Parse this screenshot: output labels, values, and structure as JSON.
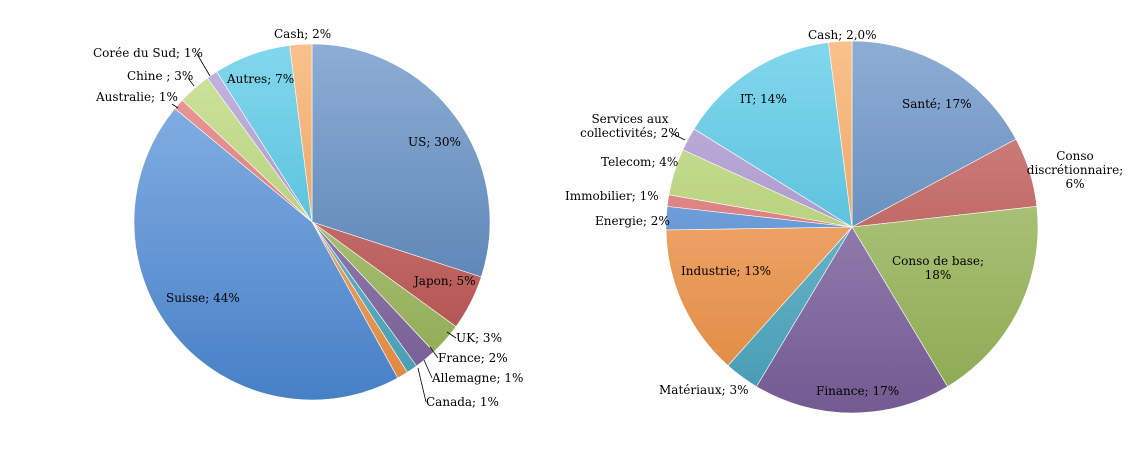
{
  "chart_data": [
    {
      "type": "pie",
      "title": "",
      "start": "top, clockwise",
      "slices": [
        {
          "label": "US; 30%",
          "value": 30,
          "color": "#4f81bd"
        },
        {
          "label": "Japon; 5%",
          "value": 5,
          "color": "#c0504d"
        },
        {
          "label": "UK; 3%",
          "value": 3,
          "color": "#9bbb59"
        },
        {
          "label": "France;  2%",
          "value": 2,
          "color": "#8064a2"
        },
        {
          "label": "Allemagne;  1%",
          "value": 1,
          "color": "#4bacc6"
        },
        {
          "label": "Canada;  1%",
          "value": 1,
          "color": "#f79646"
        },
        {
          "label": "Suisse; 44%",
          "value": 44,
          "color": "#4f8edc"
        },
        {
          "label": "Australie; 1%",
          "value": 1,
          "color": "#e46c6c"
        },
        {
          "label": "Chine ; 3%",
          "value": 3,
          "color": "#b5d66b"
        },
        {
          "label": "Corée du Sud; 1%",
          "value": 1,
          "color": "#a58fd0"
        },
        {
          "label": "Autres; 7%",
          "value": 7,
          "color": "#3fc2e4"
        },
        {
          "label": "Cash;  2%",
          "value": 2,
          "color": "#f7a04e"
        }
      ]
    },
    {
      "type": "pie",
      "title": "",
      "start": "top, clockwise",
      "slices": [
        {
          "label": "Santé;  17%",
          "value": 17,
          "color": "#4f81bd"
        },
        {
          "label": "Conso discrétionnaire; 6%",
          "value": 6,
          "color": "#c0504d"
        },
        {
          "label": "Conso de base; 18%",
          "value": 18,
          "color": "#9bbb59"
        },
        {
          "label": "Finance;  17%",
          "value": 17,
          "color": "#8064a2"
        },
        {
          "label": "Matériaux;  3%",
          "value": 3,
          "color": "#4bacc6"
        },
        {
          "label": "Industrie;  13%",
          "value": 13,
          "color": "#f79646"
        },
        {
          "label": "Energie;  2%",
          "value": 2,
          "color": "#4f8edc"
        },
        {
          "label": "Immobilier; 1%",
          "value": 1,
          "color": "#e46c6c"
        },
        {
          "label": "Telecom;  4%",
          "value": 4,
          "color": "#b5d66b"
        },
        {
          "label": "Services aux collectivités; 2%",
          "value": 2,
          "color": "#a58fd0"
        },
        {
          "label": "IT;  14%",
          "value": 14,
          "color": "#3fc2e4"
        },
        {
          "label": "Cash;  2,0%",
          "value": 2,
          "color": "#f7a04e"
        }
      ]
    }
  ]
}
